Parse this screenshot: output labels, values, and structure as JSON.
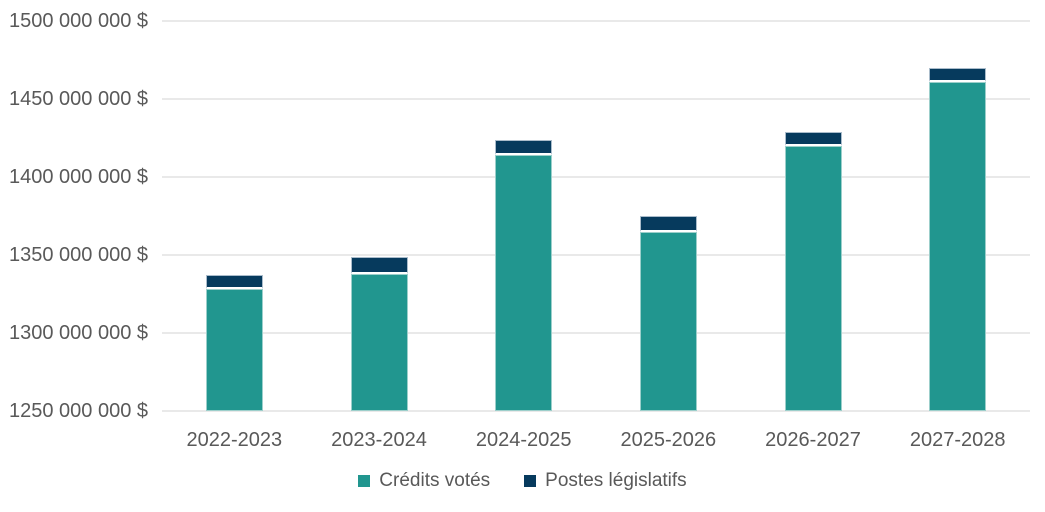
{
  "chart_data": {
    "type": "bar",
    "stacked": true,
    "title": "",
    "xlabel": "",
    "ylabel": "",
    "categories": [
      "2022-2023",
      "2023-2024",
      "2024-2025",
      "2025-2026",
      "2026-2027",
      "2027-2028"
    ],
    "series": [
      {
        "name": "Crédits votés",
        "color": "#21968F",
        "values": [
          1328000000,
          1338000000,
          1414000000,
          1365000000,
          1420000000,
          1461000000
        ]
      },
      {
        "name": "Postes législatifs",
        "color": "#063A5D",
        "values": [
          9000000,
          11000000,
          10000000,
          10000000,
          9000000,
          9000000
        ]
      }
    ],
    "ylim": [
      1250000000,
      1500000000
    ],
    "ytick_step": 50000000,
    "ytick_labels": [
      "1250 000 000 $",
      "1300 000 000 $",
      "1350 000 000 $",
      "1400 000 000 $",
      "1450 000 000 $",
      "1500 000 000 $"
    ],
    "grid": true,
    "legend_position": "bottom"
  },
  "colors": {
    "gridline": "#e9e9e9",
    "axis_text": "#595959",
    "background": "#ffffff"
  }
}
